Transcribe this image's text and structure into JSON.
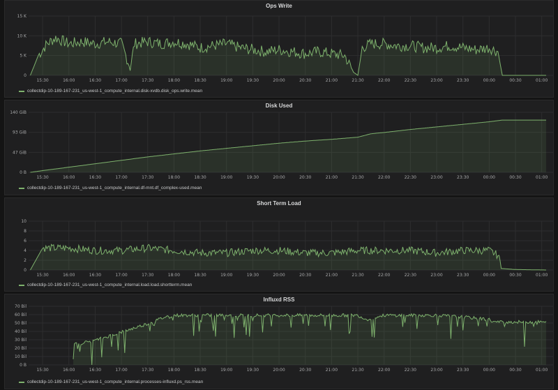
{
  "colors": {
    "series": "#7eb26d",
    "fill": "rgba(126,178,109,0.12)",
    "grid": "#2e2e2f"
  },
  "chart_data": [
    {
      "type": "line",
      "title": "Ops Write",
      "x_ticks": [
        "15:30",
        "16:00",
        "16:30",
        "17:00",
        "17:30",
        "18:00",
        "18:30",
        "19:00",
        "19:30",
        "20:00",
        "20:30",
        "21:00",
        "21:30",
        "22:00",
        "22:30",
        "23:00",
        "23:30",
        "00:00",
        "00:30",
        "01:00"
      ],
      "y_ticks": [
        "0",
        "5 K",
        "10 K",
        "15 K"
      ],
      "ylim": [
        0,
        15000
      ],
      "series": [
        {
          "name": "collectdip-10-189-167-231_us-west-1_compute_internal.disk-xvdb.disk_ops.write.mean",
          "x": [
            "15:16",
            "15:25",
            "15:35",
            "15:45",
            "16:00",
            "16:15",
            "16:30",
            "16:45",
            "17:00",
            "17:10",
            "17:15",
            "17:30",
            "17:45",
            "18:00",
            "18:15",
            "18:30",
            "18:45",
            "19:00",
            "19:15",
            "19:30",
            "19:45",
            "20:00",
            "20:15",
            "20:30",
            "20:45",
            "21:00",
            "21:15",
            "21:25",
            "21:30",
            "21:35",
            "21:45",
            "22:00",
            "22:15",
            "22:30",
            "22:45",
            "23:00",
            "23:15",
            "23:30",
            "23:45",
            "00:00",
            "00:10",
            "00:15",
            "00:30",
            "01:05"
          ],
          "y": [
            0,
            5000,
            8000,
            9500,
            8000,
            8500,
            8000,
            8500,
            8000,
            2000,
            8000,
            8500,
            8000,
            8500,
            8000,
            7000,
            7500,
            8000,
            7000,
            6500,
            6000,
            6500,
            6000,
            5500,
            6000,
            5500,
            5000,
            800,
            0,
            7000,
            8000,
            8000,
            7500,
            7500,
            7000,
            7000,
            7500,
            7000,
            6500,
            7000,
            6000,
            0,
            0,
            0
          ]
        }
      ]
    },
    {
      "type": "area",
      "title": "Disk Used",
      "x_ticks": [
        "15:30",
        "16:00",
        "16:30",
        "17:00",
        "17:30",
        "18:00",
        "18:30",
        "19:00",
        "19:30",
        "20:00",
        "20:30",
        "21:00",
        "21:30",
        "22:00",
        "22:30",
        "23:00",
        "23:30",
        "00:00",
        "00:30",
        "01:00"
      ],
      "y_ticks": [
        "0 B",
        "47 GiB",
        "93 GiB",
        "140 GiB"
      ],
      "ylim": [
        0,
        140
      ],
      "series": [
        {
          "name": "collectdip-10-189-167-231_us-west-1_compute_internal.df-mnt.df_complex-used.mean",
          "x": [
            "15:16",
            "15:30",
            "16:00",
            "16:30",
            "17:00",
            "17:30",
            "18:00",
            "18:30",
            "19:00",
            "19:30",
            "20:00",
            "20:30",
            "21:00",
            "21:30",
            "21:45",
            "22:00",
            "22:30",
            "23:00",
            "23:30",
            "00:00",
            "00:15",
            "00:30",
            "01:05"
          ],
          "y": [
            0,
            4,
            12,
            20,
            28,
            36,
            43,
            50,
            56,
            62,
            68,
            73,
            77,
            82,
            90,
            93,
            100,
            106,
            112,
            118,
            122,
            122,
            122
          ]
        }
      ]
    },
    {
      "type": "line",
      "title": "Short Term Load",
      "x_ticks": [
        "15:30",
        "16:00",
        "16:30",
        "17:00",
        "17:30",
        "18:00",
        "18:30",
        "19:00",
        "19:30",
        "20:00",
        "20:30",
        "21:00",
        "21:30",
        "22:00",
        "22:30",
        "23:00",
        "23:30",
        "00:00",
        "00:30",
        "01:00"
      ],
      "y_ticks": [
        "0",
        "2",
        "4",
        "6",
        "8",
        "10"
      ],
      "ylim": [
        0,
        10
      ],
      "series": [
        {
          "name": "collectdip-10-189-167-231_us-west-1_compute_internal.load.load.shortterm.mean",
          "x": [
            "15:16",
            "15:30",
            "16:00",
            "16:30",
            "17:00",
            "17:30",
            "18:00",
            "18:30",
            "19:00",
            "19:30",
            "20:00",
            "20:30",
            "21:00",
            "21:30",
            "22:00",
            "22:30",
            "23:00",
            "23:30",
            "00:00",
            "00:10",
            "00:15",
            "00:30",
            "01:05"
          ],
          "y": [
            0,
            4.5,
            4.5,
            4,
            4,
            4.5,
            4,
            3.5,
            3.5,
            4,
            4,
            3.5,
            3.5,
            4,
            4,
            4,
            3.5,
            4,
            4,
            3,
            0.3,
            0.1,
            0
          ]
        }
      ]
    },
    {
      "type": "line",
      "title": "Influxd RSS",
      "x_ticks": [
        "15:30",
        "16:00",
        "16:30",
        "17:00",
        "17:30",
        "18:00",
        "18:30",
        "19:00",
        "19:30",
        "20:00",
        "20:30",
        "21:00",
        "21:30",
        "22:00",
        "22:30",
        "23:00",
        "23:30",
        "00:00",
        "00:30",
        "01:00"
      ],
      "y_ticks": [
        "0 B",
        "10 Bil",
        "20 Bil",
        "30 Bil",
        "40 Bil",
        "50 Bil",
        "60 Bil",
        "70 Bil"
      ],
      "ylim": [
        0,
        70
      ],
      "series": [
        {
          "name": "collectdip-10-189-167-231_us-west-1_compute_internal.processes-influxd.ps_rss.mean",
          "x": [
            "16:05",
            "16:30",
            "17:00",
            "17:30",
            "17:50",
            "18:00",
            "18:30",
            "19:00",
            "19:30",
            "20:00",
            "20:30",
            "21:00",
            "21:30",
            "21:40",
            "22:00",
            "22:30",
            "23:00",
            "23:30",
            "00:00",
            "00:05",
            "00:30",
            "01:05"
          ],
          "y": [
            25,
            30,
            40,
            50,
            58,
            60,
            60,
            60,
            60,
            60,
            60,
            60,
            60,
            55,
            60,
            60,
            60,
            58,
            55,
            52,
            52,
            52
          ]
        }
      ]
    }
  ]
}
